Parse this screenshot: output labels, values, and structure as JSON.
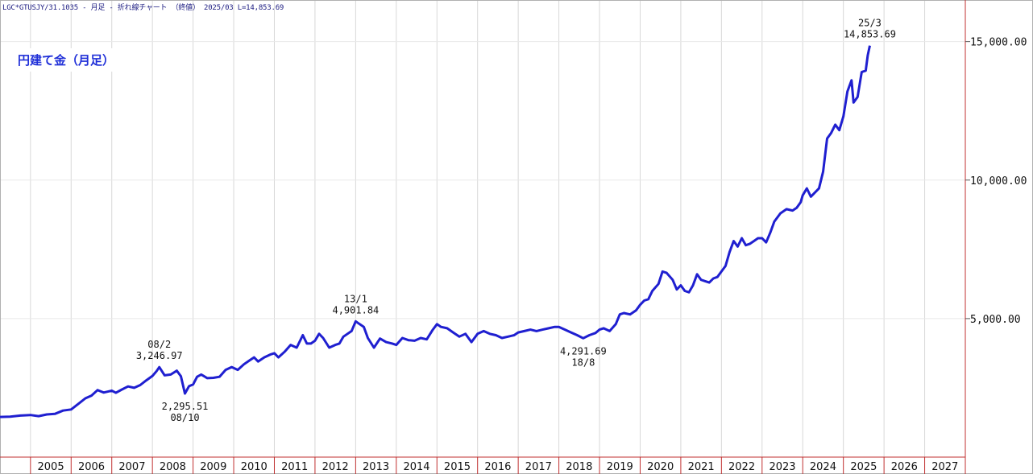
{
  "header": {
    "text": "LGC*GTUSJY/31.1035 - 月足 - 折れ線チャート （終値） 2025/03 L=14,853.69"
  },
  "title": "円建て金（月足）",
  "colors": {
    "line": "#1f1fd0",
    "grid_vertical": "#d8d8d8",
    "grid_horizontal": "#e8e8e8",
    "frame": "#b0b0b0",
    "axis_line": "#c03030",
    "text": "#111111"
  },
  "chart_data": {
    "type": "line",
    "title": "円建て金（月足）",
    "xlabel": "",
    "ylabel": "",
    "x_unit": "year",
    "xlim": [
      2004.25,
      2028.0
    ],
    "ylim": [
      0,
      16500
    ],
    "y_ticks": [
      5000,
      10000,
      15000
    ],
    "y_tick_labels": [
      "5,000.00",
      "10,000.00",
      "15,000.00"
    ],
    "x_ticks": [
      2005,
      2006,
      2007,
      2008,
      2009,
      2010,
      2011,
      2012,
      2013,
      2014,
      2015,
      2016,
      2017,
      2018,
      2019,
      2020,
      2021,
      2022,
      2023,
      2024,
      2025,
      2026,
      2027
    ],
    "x_tick_labels": [
      "2005",
      "2006",
      "2007",
      "2008",
      "2009",
      "2010",
      "2011",
      "2012",
      "2013",
      "2014",
      "2015",
      "2016",
      "2017",
      "2018",
      "2019",
      "2020",
      "2021",
      "2022",
      "2023",
      "2024",
      "2025",
      "2026",
      "2027"
    ],
    "grid": true,
    "series": [
      {
        "name": "",
        "points": [
          [
            2004.25,
            1450
          ],
          [
            2004.5,
            1460
          ],
          [
            2004.75,
            1500
          ],
          [
            2005.0,
            1520
          ],
          [
            2005.2,
            1480
          ],
          [
            2005.4,
            1540
          ],
          [
            2005.6,
            1560
          ],
          [
            2005.8,
            1680
          ],
          [
            2006.0,
            1720
          ],
          [
            2006.2,
            1950
          ],
          [
            2006.35,
            2120
          ],
          [
            2006.5,
            2220
          ],
          [
            2006.65,
            2420
          ],
          [
            2006.8,
            2330
          ],
          [
            2007.0,
            2400
          ],
          [
            2007.1,
            2320
          ],
          [
            2007.25,
            2440
          ],
          [
            2007.4,
            2550
          ],
          [
            2007.55,
            2500
          ],
          [
            2007.7,
            2600
          ],
          [
            2007.85,
            2770
          ],
          [
            2008.0,
            2930
          ],
          [
            2008.1,
            3100
          ],
          [
            2008.17,
            3247
          ],
          [
            2008.3,
            2950
          ],
          [
            2008.45,
            2980
          ],
          [
            2008.6,
            3120
          ],
          [
            2008.7,
            2920
          ],
          [
            2008.8,
            2296
          ],
          [
            2008.9,
            2560
          ],
          [
            2009.0,
            2620
          ],
          [
            2009.1,
            2900
          ],
          [
            2009.2,
            2980
          ],
          [
            2009.35,
            2850
          ],
          [
            2009.5,
            2860
          ],
          [
            2009.65,
            2900
          ],
          [
            2009.8,
            3150
          ],
          [
            2009.95,
            3250
          ],
          [
            2010.1,
            3150
          ],
          [
            2010.25,
            3350
          ],
          [
            2010.4,
            3500
          ],
          [
            2010.5,
            3600
          ],
          [
            2010.6,
            3450
          ],
          [
            2010.75,
            3600
          ],
          [
            2010.9,
            3700
          ],
          [
            2011.0,
            3750
          ],
          [
            2011.1,
            3600
          ],
          [
            2011.25,
            3800
          ],
          [
            2011.4,
            4050
          ],
          [
            2011.55,
            3950
          ],
          [
            2011.7,
            4400
          ],
          [
            2011.8,
            4100
          ],
          [
            2011.9,
            4100
          ],
          [
            2012.0,
            4200
          ],
          [
            2012.1,
            4450
          ],
          [
            2012.2,
            4300
          ],
          [
            2012.35,
            3950
          ],
          [
            2012.5,
            4050
          ],
          [
            2012.6,
            4100
          ],
          [
            2012.7,
            4350
          ],
          [
            2012.8,
            4450
          ],
          [
            2012.9,
            4550
          ],
          [
            2013.0,
            4902
          ],
          [
            2013.1,
            4800
          ],
          [
            2013.2,
            4700
          ],
          [
            2013.3,
            4300
          ],
          [
            2013.45,
            3950
          ],
          [
            2013.6,
            4280
          ],
          [
            2013.75,
            4150
          ],
          [
            2013.9,
            4100
          ],
          [
            2014.0,
            4050
          ],
          [
            2014.15,
            4300
          ],
          [
            2014.3,
            4220
          ],
          [
            2014.45,
            4200
          ],
          [
            2014.6,
            4300
          ],
          [
            2014.75,
            4250
          ],
          [
            2014.9,
            4600
          ],
          [
            2015.0,
            4800
          ],
          [
            2015.1,
            4700
          ],
          [
            2015.25,
            4650
          ],
          [
            2015.4,
            4500
          ],
          [
            2015.55,
            4350
          ],
          [
            2015.7,
            4450
          ],
          [
            2015.85,
            4150
          ],
          [
            2016.0,
            4450
          ],
          [
            2016.15,
            4550
          ],
          [
            2016.3,
            4450
          ],
          [
            2016.45,
            4400
          ],
          [
            2016.6,
            4300
          ],
          [
            2016.75,
            4350
          ],
          [
            2016.9,
            4400
          ],
          [
            2017.0,
            4500
          ],
          [
            2017.15,
            4550
          ],
          [
            2017.3,
            4600
          ],
          [
            2017.45,
            4550
          ],
          [
            2017.6,
            4600
          ],
          [
            2017.75,
            4650
          ],
          [
            2017.9,
            4700
          ],
          [
            2018.0,
            4700
          ],
          [
            2018.15,
            4600
          ],
          [
            2018.3,
            4500
          ],
          [
            2018.45,
            4400
          ],
          [
            2018.6,
            4292
          ],
          [
            2018.75,
            4400
          ],
          [
            2018.9,
            4480
          ],
          [
            2019.0,
            4600
          ],
          [
            2019.1,
            4650
          ],
          [
            2019.25,
            4550
          ],
          [
            2019.4,
            4800
          ],
          [
            2019.5,
            5150
          ],
          [
            2019.6,
            5200
          ],
          [
            2019.75,
            5150
          ],
          [
            2019.9,
            5300
          ],
          [
            2020.0,
            5500
          ],
          [
            2020.1,
            5650
          ],
          [
            2020.2,
            5700
          ],
          [
            2020.3,
            6000
          ],
          [
            2020.45,
            6250
          ],
          [
            2020.55,
            6700
          ],
          [
            2020.65,
            6650
          ],
          [
            2020.8,
            6400
          ],
          [
            2020.9,
            6050
          ],
          [
            2021.0,
            6200
          ],
          [
            2021.1,
            6000
          ],
          [
            2021.2,
            5950
          ],
          [
            2021.3,
            6200
          ],
          [
            2021.4,
            6600
          ],
          [
            2021.5,
            6400
          ],
          [
            2021.6,
            6350
          ],
          [
            2021.7,
            6300
          ],
          [
            2021.8,
            6450
          ],
          [
            2021.9,
            6500
          ],
          [
            2022.0,
            6700
          ],
          [
            2022.1,
            6900
          ],
          [
            2022.2,
            7400
          ],
          [
            2022.3,
            7800
          ],
          [
            2022.4,
            7600
          ],
          [
            2022.5,
            7900
          ],
          [
            2022.6,
            7650
          ],
          [
            2022.7,
            7700
          ],
          [
            2022.8,
            7800
          ],
          [
            2022.9,
            7900
          ],
          [
            2023.0,
            7900
          ],
          [
            2023.1,
            7750
          ],
          [
            2023.2,
            8100
          ],
          [
            2023.3,
            8500
          ],
          [
            2023.45,
            8800
          ],
          [
            2023.6,
            8950
          ],
          [
            2023.75,
            8900
          ],
          [
            2023.85,
            9000
          ],
          [
            2023.95,
            9200
          ],
          [
            2024.0,
            9450
          ],
          [
            2024.1,
            9700
          ],
          [
            2024.2,
            9400
          ],
          [
            2024.3,
            9550
          ],
          [
            2024.4,
            9700
          ],
          [
            2024.5,
            10300
          ],
          [
            2024.6,
            11500
          ],
          [
            2024.7,
            11700
          ],
          [
            2024.8,
            12000
          ],
          [
            2024.9,
            11800
          ],
          [
            2025.0,
            12300
          ],
          [
            2025.1,
            13200
          ],
          [
            2025.2,
            13600
          ],
          [
            2025.25,
            12800
          ],
          [
            2025.35,
            13000
          ],
          [
            2025.45,
            13900
          ],
          [
            2025.55,
            13950
          ],
          [
            2025.6,
            14500
          ],
          [
            2025.65,
            14854
          ]
        ]
      }
    ],
    "annotations": [
      {
        "x": 2008.17,
        "y": 3247,
        "lines": [
          "08/2",
          "3,246.97"
        ],
        "position": "above"
      },
      {
        "x": 2008.8,
        "y": 2296,
        "lines": [
          "2,295.51",
          "08/10"
        ],
        "position": "below"
      },
      {
        "x": 2013.0,
        "y": 4902,
        "lines": [
          "13/1",
          "4,901.84"
        ],
        "position": "above"
      },
      {
        "x": 2018.6,
        "y": 4292,
        "lines": [
          "4,291.69",
          "18/8"
        ],
        "position": "below"
      },
      {
        "x": 2025.65,
        "y": 14854,
        "lines": [
          "25/3",
          "14,853.69"
        ],
        "position": "above"
      }
    ]
  }
}
